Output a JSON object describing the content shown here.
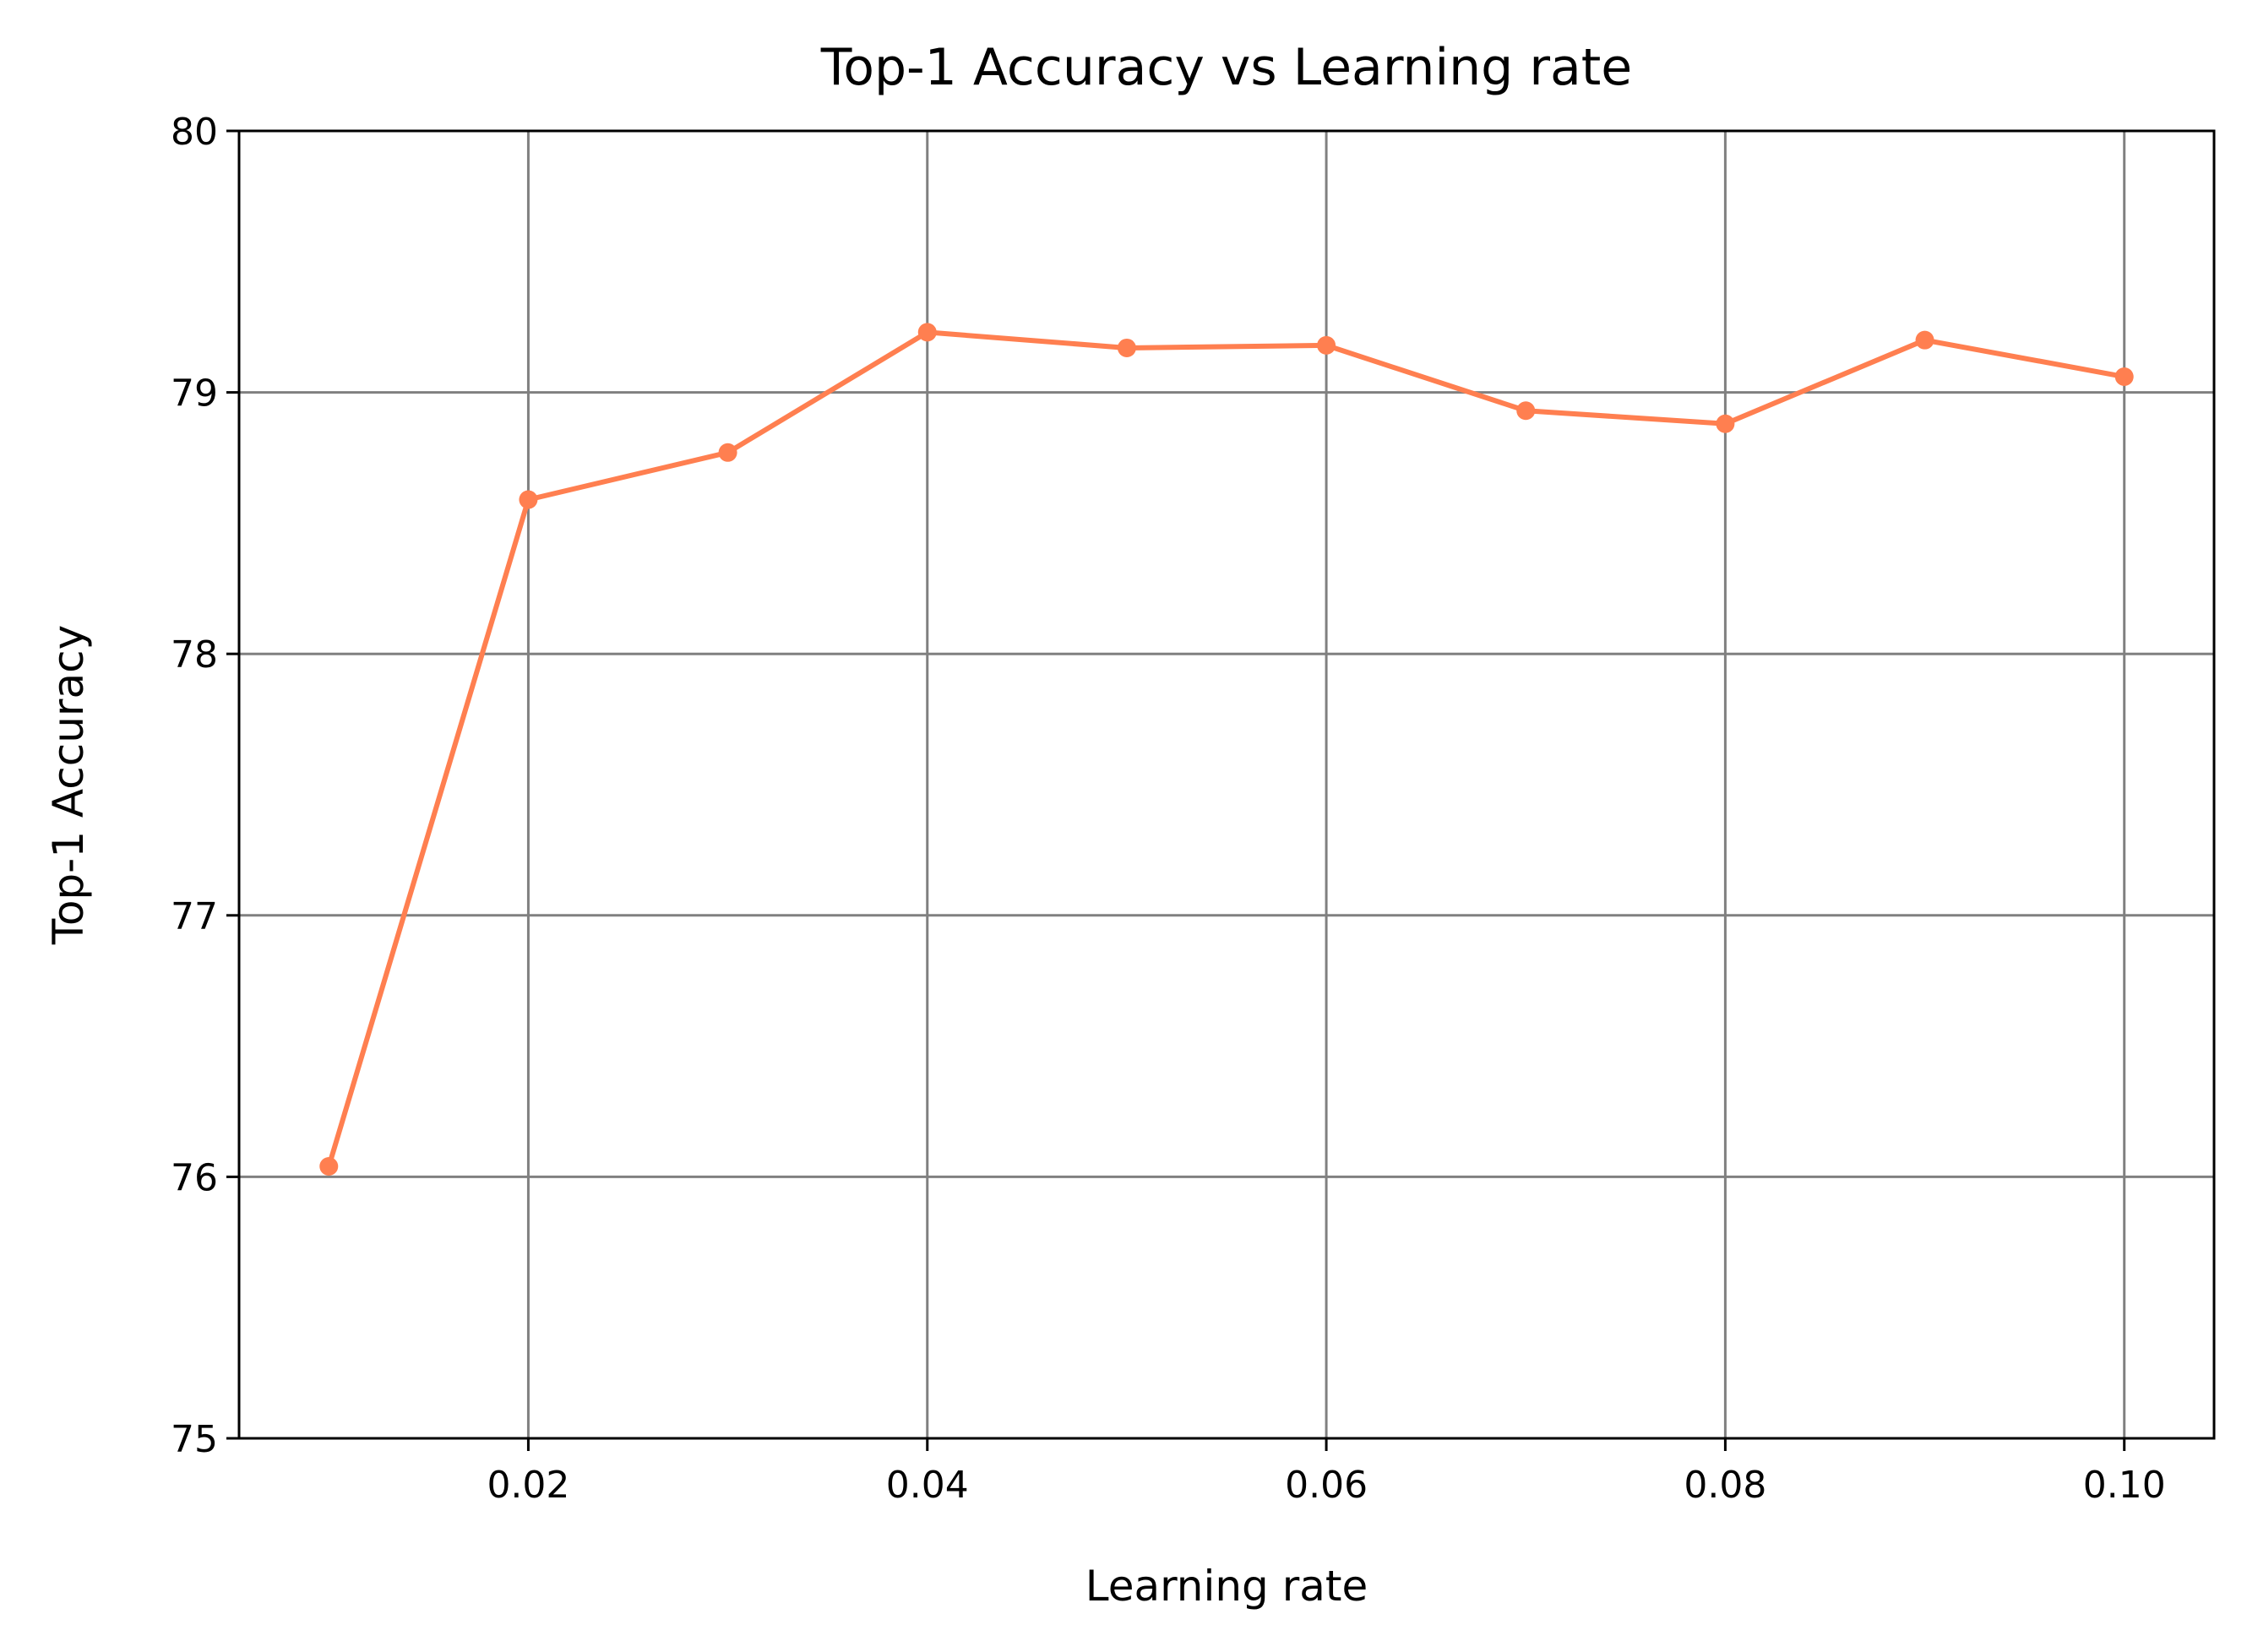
{
  "chart_data": {
    "type": "line",
    "title": "Top-1 Accuracy vs Learning rate",
    "x_label": "Learning rate",
    "y_label": "Top-1 Accuracy",
    "x": [
      0.01,
      0.02,
      0.03,
      0.04,
      0.05,
      0.06,
      0.07,
      0.08,
      0.09,
      0.1
    ],
    "series": [
      {
        "name": "Top-1 Accuracy",
        "color": "#ff7f50",
        "values": [
          76.04,
          78.59,
          78.77,
          79.23,
          79.17,
          79.18,
          78.93,
          78.88,
          79.2,
          79.06
        ]
      }
    ],
    "xlim": [
      0.0055,
      0.1045
    ],
    "xticks": [
      0.02,
      0.04,
      0.06,
      0.08,
      {
        "value": 0.1,
        "label": "0.10"
      }
    ],
    "ylim": [
      75,
      80
    ],
    "yticks": [
      75,
      76,
      77,
      78,
      79,
      80
    ],
    "grid": true
  }
}
